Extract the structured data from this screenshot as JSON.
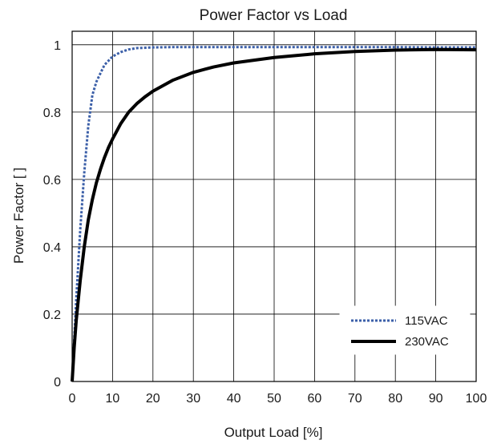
{
  "chart_data": {
    "type": "line",
    "title": "Power Factor vs Load",
    "xlabel": "Output Load [%]",
    "ylabel": "Power Factor [ ]",
    "xlim": [
      0,
      100
    ],
    "ylim": [
      0,
      1.04
    ],
    "xticks": [
      0,
      10,
      20,
      30,
      40,
      50,
      60,
      70,
      80,
      90,
      100
    ],
    "yticks": [
      0,
      0.2,
      0.4,
      0.6,
      0.8,
      1
    ],
    "ytick_labels": [
      "0",
      "0.2",
      "0.4",
      "0.6",
      "0.8",
      "1"
    ],
    "grid": true,
    "legend_position": "bottom-right",
    "series": [
      {
        "name": "115VAC",
        "color": "#3b5fa8",
        "style": "dotted",
        "x": [
          0,
          0.5,
          1,
          2,
          3,
          4,
          5,
          6,
          7,
          8,
          10,
          12,
          14,
          16,
          18,
          20,
          25,
          30,
          40,
          50,
          60,
          70,
          80,
          90,
          100
        ],
        "y": [
          0,
          0.12,
          0.24,
          0.45,
          0.62,
          0.76,
          0.85,
          0.89,
          0.915,
          0.94,
          0.965,
          0.978,
          0.986,
          0.99,
          0.991,
          0.992,
          0.993,
          0.993,
          0.993,
          0.993,
          0.993,
          0.993,
          0.993,
          0.992,
          0.992
        ]
      },
      {
        "name": "230VAC",
        "color": "#000000",
        "style": "solid",
        "x": [
          0,
          0.5,
          1,
          2,
          3,
          4,
          5,
          6,
          7,
          8,
          9,
          10,
          12,
          14,
          16,
          18,
          20,
          25,
          30,
          35,
          40,
          50,
          60,
          70,
          80,
          90,
          100
        ],
        "y": [
          0,
          0.1,
          0.18,
          0.3,
          0.4,
          0.48,
          0.54,
          0.59,
          0.63,
          0.665,
          0.695,
          0.72,
          0.765,
          0.8,
          0.825,
          0.845,
          0.862,
          0.895,
          0.918,
          0.934,
          0.946,
          0.962,
          0.973,
          0.98,
          0.984,
          0.986,
          0.985
        ]
      }
    ]
  }
}
